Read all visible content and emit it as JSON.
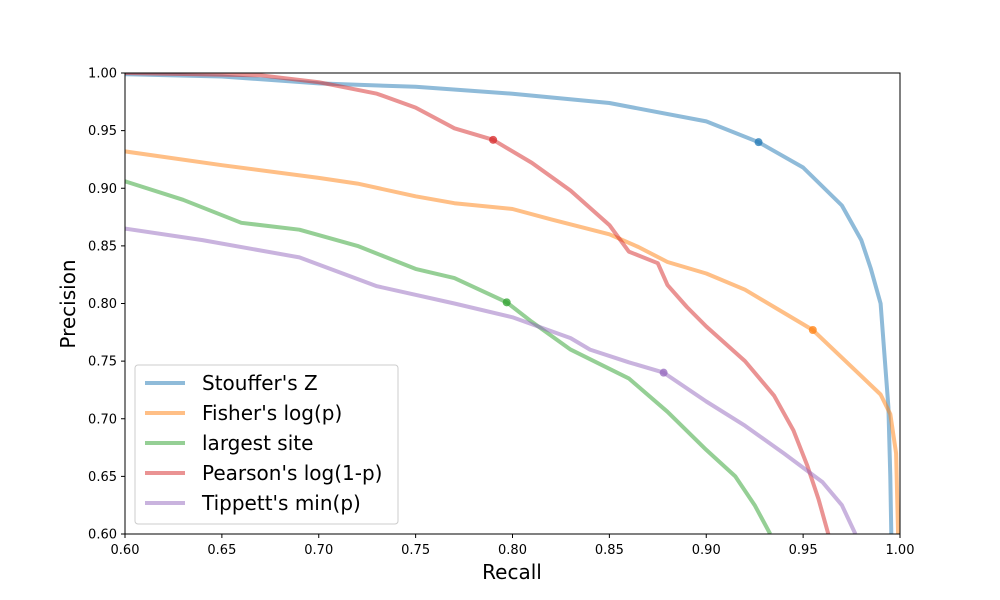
{
  "chart_data": {
    "type": "line",
    "title": "",
    "xlabel": "Recall",
    "ylabel": "Precision",
    "xlim": [
      0.6,
      1.0
    ],
    "ylim": [
      0.6,
      1.0
    ],
    "grid": false,
    "legend_position": "lower-left",
    "xticks": [
      "0.60",
      "0.65",
      "0.70",
      "0.75",
      "0.80",
      "0.85",
      "0.90",
      "0.95",
      "1.00"
    ],
    "yticks": [
      "0.60",
      "0.65",
      "0.70",
      "0.75",
      "0.80",
      "0.85",
      "0.90",
      "0.95",
      "1.00"
    ],
    "series": [
      {
        "name": "Stouffer's Z",
        "color": "#1f77b4",
        "points": [
          [
            0.6,
            0.999
          ],
          [
            0.65,
            0.997
          ],
          [
            0.7,
            0.991
          ],
          [
            0.75,
            0.988
          ],
          [
            0.8,
            0.982
          ],
          [
            0.85,
            0.974
          ],
          [
            0.9,
            0.958
          ],
          [
            0.927,
            0.94
          ],
          [
            0.95,
            0.918
          ],
          [
            0.97,
            0.885
          ],
          [
            0.98,
            0.855
          ],
          [
            0.985,
            0.83
          ],
          [
            0.99,
            0.8
          ],
          [
            0.992,
            0.755
          ],
          [
            0.994,
            0.71
          ],
          [
            0.995,
            0.65
          ],
          [
            0.9955,
            0.6
          ]
        ],
        "marker": [
          0.927,
          0.94
        ]
      },
      {
        "name": "Fisher's log(p)",
        "color": "#ff7f0e",
        "points": [
          [
            0.6,
            0.932
          ],
          [
            0.65,
            0.92
          ],
          [
            0.7,
            0.909
          ],
          [
            0.72,
            0.904
          ],
          [
            0.75,
            0.893
          ],
          [
            0.77,
            0.887
          ],
          [
            0.8,
            0.882
          ],
          [
            0.82,
            0.873
          ],
          [
            0.85,
            0.86
          ],
          [
            0.865,
            0.849
          ],
          [
            0.88,
            0.836
          ],
          [
            0.9,
            0.826
          ],
          [
            0.92,
            0.812
          ],
          [
            0.935,
            0.797
          ],
          [
            0.955,
            0.777
          ],
          [
            0.965,
            0.761
          ],
          [
            0.98,
            0.737
          ],
          [
            0.99,
            0.721
          ],
          [
            0.995,
            0.704
          ],
          [
            0.998,
            0.67
          ],
          [
            0.999,
            0.6
          ]
        ],
        "marker": [
          0.955,
          0.777
        ]
      },
      {
        "name": "largest site",
        "color": "#2ca02c",
        "points": [
          [
            0.6,
            0.906
          ],
          [
            0.63,
            0.89
          ],
          [
            0.66,
            0.87
          ],
          [
            0.69,
            0.864
          ],
          [
            0.72,
            0.85
          ],
          [
            0.75,
            0.83
          ],
          [
            0.77,
            0.822
          ],
          [
            0.797,
            0.801
          ],
          [
            0.81,
            0.784
          ],
          [
            0.83,
            0.76
          ],
          [
            0.86,
            0.735
          ],
          [
            0.88,
            0.706
          ],
          [
            0.9,
            0.673
          ],
          [
            0.915,
            0.65
          ],
          [
            0.925,
            0.625
          ],
          [
            0.933,
            0.6
          ]
        ],
        "marker": [
          0.797,
          0.801
        ]
      },
      {
        "name": "Pearson's log(1-p)",
        "color": "#d62728",
        "points": [
          [
            0.6,
            1.0
          ],
          [
            0.67,
            0.998
          ],
          [
            0.7,
            0.992
          ],
          [
            0.73,
            0.982
          ],
          [
            0.75,
            0.97
          ],
          [
            0.77,
            0.952
          ],
          [
            0.79,
            0.942
          ],
          [
            0.81,
            0.922
          ],
          [
            0.83,
            0.898
          ],
          [
            0.85,
            0.868
          ],
          [
            0.86,
            0.845
          ],
          [
            0.875,
            0.835
          ],
          [
            0.88,
            0.816
          ],
          [
            0.89,
            0.797
          ],
          [
            0.9,
            0.78
          ],
          [
            0.92,
            0.75
          ],
          [
            0.935,
            0.72
          ],
          [
            0.945,
            0.69
          ],
          [
            0.952,
            0.66
          ],
          [
            0.958,
            0.63
          ],
          [
            0.963,
            0.6
          ]
        ],
        "marker": [
          0.79,
          0.942
        ]
      },
      {
        "name": "Tippett's min(p)",
        "color": "#9467bd",
        "points": [
          [
            0.6,
            0.865
          ],
          [
            0.64,
            0.855
          ],
          [
            0.69,
            0.84
          ],
          [
            0.73,
            0.815
          ],
          [
            0.77,
            0.8
          ],
          [
            0.8,
            0.788
          ],
          [
            0.83,
            0.77
          ],
          [
            0.84,
            0.76
          ],
          [
            0.86,
            0.749
          ],
          [
            0.878,
            0.74
          ],
          [
            0.9,
            0.715
          ],
          [
            0.92,
            0.694
          ],
          [
            0.94,
            0.67
          ],
          [
            0.96,
            0.645
          ],
          [
            0.97,
            0.625
          ],
          [
            0.975,
            0.607
          ],
          [
            0.977,
            0.6
          ]
        ],
        "marker": [
          0.878,
          0.74
        ]
      }
    ]
  }
}
